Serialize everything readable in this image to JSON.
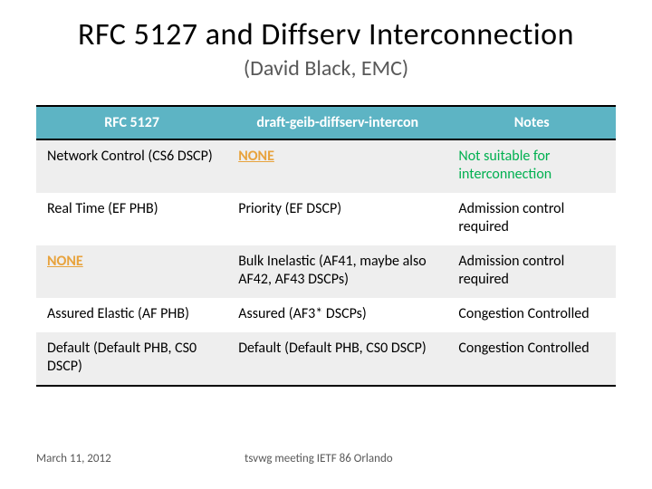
{
  "title": "RFC 5127 and Diffserv Interconnection",
  "subtitle": "(David Black, EMC)",
  "columns": [
    "RFC 5127",
    "draft-geib-diffserv-intercon",
    "Notes"
  ],
  "col_widths": [
    "33%",
    "38%",
    "29%"
  ],
  "colors": {
    "header_bg": "#5db4c4",
    "header_fg": "#ffffff",
    "row_alt_bg": "#eeeeee",
    "none_link": "#e8a33d",
    "green_note": "#00b050",
    "subtitle": "#595959",
    "footer": "#595959",
    "border": "#000000"
  },
  "rows": [
    {
      "bg": "gray",
      "c0": {
        "text": "Network Control (CS6 DSCP)",
        "style": "normal"
      },
      "c1": {
        "text": "NONE",
        "style": "none-link"
      },
      "c2": {
        "text": "Not suitable for interconnection",
        "style": "green-note"
      }
    },
    {
      "bg": "white",
      "c0": {
        "text": "Real Time (EF PHB)",
        "style": "normal"
      },
      "c1": {
        "text": "Priority (EF DSCP)",
        "style": "normal"
      },
      "c2": {
        "text": "Admission control required",
        "style": "normal"
      }
    },
    {
      "bg": "gray",
      "c0": {
        "text": "NONE",
        "style": "none-link"
      },
      "c1": {
        "text": "Bulk Inelastic (AF41, maybe also AF42, AF43 DSCPs)",
        "style": "normal"
      },
      "c2": {
        "text": "Admission control required",
        "style": "normal"
      }
    },
    {
      "bg": "white",
      "c0": {
        "text": "Assured Elastic (AF PHB)",
        "style": "normal"
      },
      "c1": {
        "text": "Assured (AF3* DSCPs)",
        "style": "normal"
      },
      "c2": {
        "text": "Congestion Controlled",
        "style": "normal"
      }
    },
    {
      "bg": "gray",
      "c0": {
        "text": "Default (Default PHB, CS0 DSCP)",
        "style": "normal"
      },
      "c1": {
        "text": "Default (Default PHB, CS0 DSCP)",
        "style": "normal"
      },
      "c2": {
        "text": "Congestion Controlled",
        "style": "normal"
      }
    }
  ],
  "footer": {
    "date": "March 11, 2012",
    "meeting": "tsvwg meeting IETF 86 Orlando"
  }
}
